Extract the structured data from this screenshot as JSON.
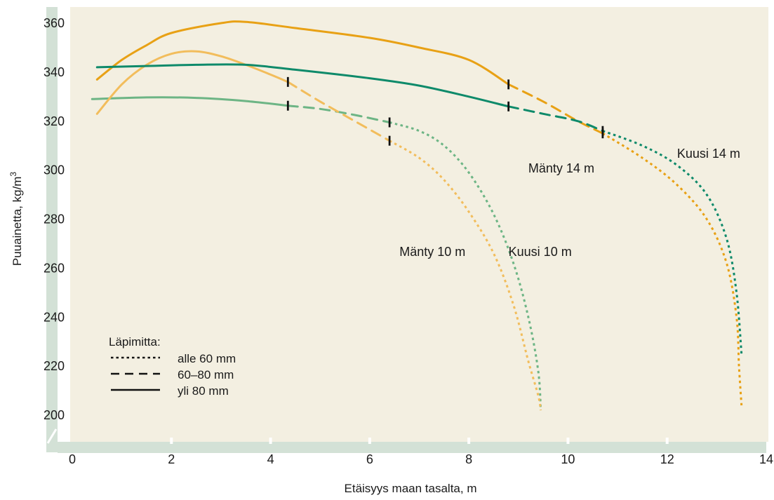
{
  "chart_data": {
    "type": "line",
    "title": "",
    "xlabel": "Etäisyys maan tasalta, m",
    "ylabel_base": "Puuainetta, kg/m",
    "ylabel_sup": "3",
    "xlim": [
      0,
      14
    ],
    "ylim": [
      190,
      365
    ],
    "xticks": [
      "0",
      "2",
      "4",
      "6",
      "8",
      "10",
      "12",
      "14"
    ],
    "yticks": [
      "200",
      "220",
      "240",
      "260",
      "280",
      "300",
      "320",
      "340",
      "360"
    ],
    "colors": {
      "background": "#f3efe1",
      "axis_band": "#d3e1d6",
      "kuusi14": "#0e8a6a",
      "manty14": "#e8a115",
      "manty10": "#f2bd5c",
      "kuusi10": "#6db585"
    },
    "legend": {
      "title": "Läpimitta:",
      "placement": "bottom-left",
      "items": [
        {
          "label": "alle 60 mm",
          "style": "dotted"
        },
        {
          "label": "60–80 mm",
          "style": "dashed"
        },
        {
          "label": "yli 80 mm",
          "style": "solid"
        }
      ]
    },
    "series": [
      {
        "name": "Mänty 14 m",
        "color_key": "manty14",
        "segments": [
          {
            "style": "solid",
            "points": [
              [
                0.5,
                337
              ],
              [
                1,
                345
              ],
              [
                1.5,
                351
              ],
              [
                2,
                356
              ],
              [
                3,
                360
              ],
              [
                3.5,
                360.5
              ],
              [
                4.5,
                358
              ],
              [
                6,
                354
              ],
              [
                7,
                350
              ],
              [
                8,
                345
              ],
              [
                8.8,
                335
              ]
            ]
          },
          {
            "style": "dashed",
            "points": [
              [
                8.8,
                335
              ],
              [
                9.5,
                328
              ],
              [
                10.2,
                320
              ],
              [
                10.7,
                315
              ]
            ]
          },
          {
            "style": "dotted",
            "points": [
              [
                10.7,
                315
              ],
              [
                11.5,
                305
              ],
              [
                12.2,
                294
              ],
              [
                12.8,
                280
              ],
              [
                13.2,
                262
              ],
              [
                13.4,
                240
              ],
              [
                13.45,
                220
              ],
              [
                13.5,
                204
              ]
            ]
          }
        ],
        "markers": [
          [
            8.8,
            335
          ],
          [
            10.7,
            315
          ]
        ],
        "label": "Mänty 14 m",
        "label_pos": [
          9.2,
          299
        ]
      },
      {
        "name": "Kuusi 14 m",
        "color_key": "kuusi14",
        "segments": [
          {
            "style": "solid",
            "points": [
              [
                0.5,
                342
              ],
              [
                1.5,
                342.5
              ],
              [
                2.5,
                343
              ],
              [
                3.5,
                343
              ],
              [
                4.5,
                341
              ],
              [
                6,
                337.5
              ],
              [
                7,
                334.5
              ],
              [
                8,
                330
              ],
              [
                8.8,
                326
              ]
            ]
          },
          {
            "style": "dashed",
            "points": [
              [
                8.8,
                326
              ],
              [
                9.5,
                323
              ],
              [
                10.2,
                320
              ],
              [
                10.7,
                316
              ]
            ]
          },
          {
            "style": "dotted",
            "points": [
              [
                10.7,
                316
              ],
              [
                11.5,
                310
              ],
              [
                12.2,
                302
              ],
              [
                12.8,
                290
              ],
              [
                13.2,
                272
              ],
              [
                13.4,
                250
              ],
              [
                13.5,
                225
              ]
            ]
          }
        ],
        "markers": [
          [
            8.8,
            326
          ],
          [
            10.7,
            316
          ]
        ],
        "label": "Kuusi 14 m",
        "label_pos": [
          12.2,
          305
        ]
      },
      {
        "name": "Mänty 10 m",
        "color_key": "manty10",
        "segments": [
          {
            "style": "solid",
            "points": [
              [
                0.5,
                323
              ],
              [
                1,
                335
              ],
              [
                1.5,
                343
              ],
              [
                2,
                347.5
              ],
              [
                2.5,
                348.5
              ],
              [
                3,
                346.5
              ],
              [
                3.5,
                343
              ],
              [
                4,
                339
              ],
              [
                4.35,
                336
              ]
            ]
          },
          {
            "style": "dashed",
            "points": [
              [
                4.35,
                336
              ],
              [
                5,
                328
              ],
              [
                5.7,
                320
              ],
              [
                6.4,
                312
              ]
            ]
          },
          {
            "style": "dotted",
            "points": [
              [
                6.4,
                312
              ],
              [
                7,
                305
              ],
              [
                7.5,
                296
              ],
              [
                8,
                283
              ],
              [
                8.5,
                266
              ],
              [
                8.9,
                245
              ],
              [
                9.2,
                222
              ],
              [
                9.4,
                208
              ],
              [
                9.45,
                202
              ]
            ]
          }
        ],
        "markers": [
          [
            4.35,
            336
          ],
          [
            6.4,
            312
          ]
        ],
        "label": "Mänty 10 m",
        "label_pos": [
          6.6,
          265
        ]
      },
      {
        "name": "Kuusi 10 m",
        "color_key": "kuusi10",
        "segments": [
          {
            "style": "solid",
            "points": [
              [
                0.4,
                329
              ],
              [
                1.5,
                329.7
              ],
              [
                2.5,
                329.5
              ],
              [
                3.5,
                328.2
              ],
              [
                4.35,
                326.3
              ]
            ]
          },
          {
            "style": "dashed",
            "points": [
              [
                4.35,
                326.3
              ],
              [
                5,
                325
              ],
              [
                5.7,
                322.5
              ],
              [
                6.4,
                319.5
              ]
            ]
          },
          {
            "style": "dotted",
            "points": [
              [
                6.4,
                319.5
              ],
              [
                7,
                316
              ],
              [
                7.5,
                310
              ],
              [
                8,
                299
              ],
              [
                8.5,
                282
              ],
              [
                8.9,
                262
              ],
              [
                9.2,
                240
              ],
              [
                9.4,
                218
              ],
              [
                9.45,
                202
              ]
            ]
          }
        ],
        "markers": [
          [
            4.35,
            326.3
          ],
          [
            6.4,
            319.5
          ]
        ],
        "label": "Kuusi 10 m",
        "label_pos": [
          8.8,
          265
        ]
      }
    ]
  }
}
